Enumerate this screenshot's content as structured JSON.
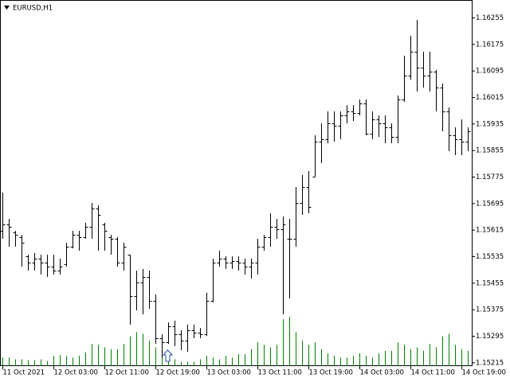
{
  "chart_data": {
    "type": "ohlc",
    "title": "EURUSD,H1",
    "categories": [
      "11 Oct 2021",
      null,
      null,
      null,
      null,
      null,
      null,
      null,
      "12 Oct 03:00",
      null,
      null,
      null,
      null,
      null,
      null,
      null,
      "12 Oct 11:00",
      null,
      null,
      null,
      null,
      null,
      null,
      null,
      "12 Oct 19:00",
      null,
      null,
      null,
      null,
      null,
      null,
      null,
      "13 Oct 03:00",
      null,
      null,
      null,
      null,
      null,
      null,
      null,
      "13 Oct 11:00",
      null,
      null,
      null,
      null,
      null,
      null,
      null,
      "13 Oct 19:00",
      null,
      null,
      null,
      null,
      null,
      null,
      null,
      "14 Oct 03:00",
      null,
      null,
      null,
      null,
      null,
      null,
      null,
      "14 Oct 11:00",
      null,
      null,
      null,
      null,
      null,
      null,
      null,
      "14 Oct 19:00",
      null
    ],
    "open": [
      1.15613,
      1.15632,
      1.15608,
      1.15594,
      1.15536,
      1.15517,
      1.15529,
      1.15517,
      1.15505,
      1.15493,
      1.15512,
      1.15565,
      1.15601,
      1.15594,
      1.15625,
      1.1568,
      1.15632,
      1.15594,
      1.15589,
      1.15517,
      1.15541,
      1.15416,
      1.15457,
      1.15474,
      1.15402,
      1.15289,
      1.15277,
      1.15325,
      1.15301,
      1.15282,
      1.15313,
      1.15306,
      1.15301,
      1.15402,
      1.15517,
      1.15529,
      1.15517,
      1.15522,
      1.15517,
      1.15505,
      1.15517,
      1.15565,
      1.15594,
      1.15625,
      1.15618,
      1.15589,
      1.15589,
      1.15697,
      1.15745,
      1.15776,
      1.15882,
      1.15889,
      1.15937,
      1.1593,
      1.15961,
      1.15973,
      1.15968,
      1.15997,
      1.15906,
      1.15949,
      1.15937,
      1.15925,
      1.15896,
      1.16009,
      1.16081,
      1.16153,
      1.16105,
      1.16081,
      1.16093,
      1.16045,
      1.15973,
      1.15901,
      1.15889,
      1.15882
    ],
    "high": [
      1.15728,
      1.15649,
      1.15613,
      1.15601,
      1.15541,
      1.15546,
      1.15541,
      1.15541,
      1.15541,
      1.15529,
      1.15577,
      1.15613,
      1.15613,
      1.15637,
      1.15697,
      1.1569,
      1.15637,
      1.15601,
      1.15594,
      1.15577,
      1.15541,
      1.15493,
      1.15498,
      1.15493,
      1.15421,
      1.15301,
      1.15337,
      1.15342,
      1.15313,
      1.1533,
      1.1533,
      1.1532,
      1.15426,
      1.15529,
      1.15553,
      1.15536,
      1.15536,
      1.15536,
      1.15529,
      1.15529,
      1.15589,
      1.15601,
      1.15666,
      1.15649,
      1.15656,
      1.15649,
      1.15745,
      1.15781,
      1.15793,
      1.15901,
      1.15937,
      1.15973,
      1.15973,
      1.15973,
      1.15992,
      1.15992,
      1.16009,
      1.16009,
      1.15973,
      1.15961,
      1.15961,
      1.15937,
      1.16021,
      1.16141,
      1.16201,
      1.16249,
      1.16153,
      1.16153,
      1.16098,
      1.16057,
      1.15985,
      1.15925,
      1.15949,
      1.15925
    ],
    "low": [
      1.15589,
      1.15565,
      1.15565,
      1.15505,
      1.15493,
      1.15493,
      1.15481,
      1.15474,
      1.15481,
      1.15481,
      1.15505,
      1.1556,
      1.15553,
      1.15589,
      1.15589,
      1.15553,
      1.15553,
      1.15541,
      1.15505,
      1.15493,
      1.1533,
      1.15373,
      1.15361,
      1.15378,
      1.15272,
      1.15229,
      1.15272,
      1.15265,
      1.15253,
      1.15248,
      1.15289,
      1.15289,
      1.15296,
      1.15397,
      1.15505,
      1.15498,
      1.15498,
      1.15493,
      1.15481,
      1.15469,
      1.15481,
      1.15553,
      1.15565,
      1.15589,
      1.15361,
      1.15409,
      1.15565,
      1.15661,
      1.15666,
      1.15776,
      1.15817,
      1.15877,
      1.15882,
      1.15889,
      1.15937,
      1.15944,
      1.15961,
      1.15901,
      1.15889,
      1.15896,
      1.15877,
      1.15877,
      1.15877,
      1.16002,
      1.16069,
      1.16033,
      1.16045,
      1.16033,
      1.15973,
      1.15913,
      1.15853,
      1.15841,
      1.15841,
      1.15853
    ],
    "close": [
      1.15632,
      1.15625,
      1.15601,
      1.15577,
      1.15517,
      1.15529,
      1.15517,
      1.15505,
      1.15493,
      1.15505,
      1.15565,
      1.15601,
      1.15594,
      1.15625,
      1.1568,
      1.15661,
      1.15613,
      1.15589,
      1.15517,
      1.15565,
      1.15416,
      1.15457,
      1.15474,
      1.15402,
      1.15289,
      1.15277,
      1.15325,
      1.15301,
      1.15282,
      1.15313,
      1.15306,
      1.15301,
      1.15402,
      1.15517,
      1.15529,
      1.15517,
      1.15522,
      1.15517,
      1.15505,
      1.15517,
      1.15565,
      1.15594,
      1.15625,
      1.15618,
      1.15632,
      1.15589,
      1.15697,
      1.15745,
      1.15685,
      1.15882,
      1.15889,
      1.15937,
      1.1593,
      1.15961,
      1.15973,
      1.15968,
      1.15997,
      1.15906,
      1.15949,
      1.15937,
      1.15925,
      1.15896,
      1.16009,
      1.16081,
      1.16153,
      1.16105,
      1.16081,
      1.16093,
      1.16045,
      1.15973,
      1.15901,
      1.15889,
      1.15882,
      1.15913
    ],
    "volume": [
      1000,
      1000,
      800,
      800,
      700,
      700,
      800,
      600,
      1200,
      1300,
      1200,
      1000,
      1200,
      1600,
      2600,
      2500,
      2200,
      2000,
      2000,
      2600,
      3500,
      4000,
      3800,
      3000,
      2200,
      1400,
      500,
      800,
      500,
      500,
      500,
      800,
      1200,
      1000,
      800,
      1200,
      1000,
      1400,
      1400,
      2000,
      2800,
      2500,
      2200,
      2500,
      5500,
      5800,
      4000,
      3000,
      2500,
      2800,
      2000,
      1500,
      1200,
      1000,
      1000,
      1200,
      1500,
      1200,
      1000,
      1500,
      1800,
      1800,
      2800,
      2500,
      2000,
      2200,
      1800,
      2600,
      2200,
      3500,
      3800,
      2500,
      2000,
      1800
    ],
    "color": "#000000",
    "volume_color": "#008000",
    "ylim": [
      1.15205,
      1.16309
    ],
    "yticks": [
      1.16255,
      1.16175,
      1.16095,
      1.16015,
      1.15935,
      1.15855,
      1.15775,
      1.15695,
      1.15615,
      1.15535,
      1.15455,
      1.15375,
      1.15295,
      1.15215
    ]
  }
}
